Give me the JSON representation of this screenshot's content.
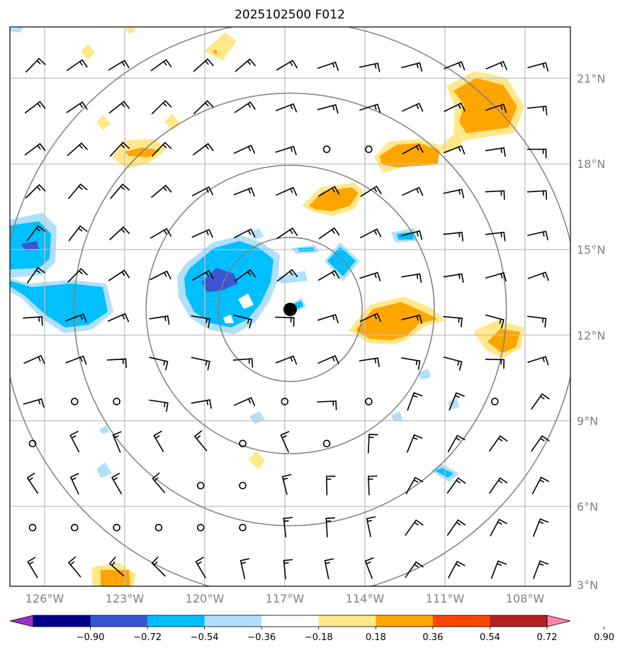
{
  "title": "2025102500 F012",
  "map": {
    "lon_range": [
      -127.3,
      -106.3
    ],
    "lat_range": [
      3.2,
      22.8
    ],
    "lon_labels": [
      "126°W",
      "123°W",
      "120°W",
      "117°W",
      "114°W",
      "111°W",
      "108°W"
    ],
    "lon_values": [
      -126,
      -123,
      -120,
      -117,
      -114,
      -111,
      -108
    ],
    "lat_labels": [
      "3°N",
      "6°N",
      "9°N",
      "12°N",
      "15°N",
      "18°N",
      "21°N"
    ],
    "lat_values": [
      3,
      6,
      9,
      12,
      15,
      18,
      21
    ],
    "storm_center": {
      "lon": -116.8,
      "lat": 12.9
    },
    "range_ring_radii_deg": [
      2.7,
      5.4,
      8.1,
      10.8
    ]
  },
  "colorbar": {
    "ticks": [
      "−0.90",
      "−0.72",
      "−0.54",
      "−0.36",
      "−0.18",
      "0.18",
      "0.36",
      "0.54",
      "0.72",
      "0.90"
    ],
    "colors": [
      "#9b30d0",
      "#00008b",
      "#3a56d4",
      "#00bfff",
      "#b0e0fa",
      "#ffffff",
      "#ffe88a",
      "#ffa500",
      "#ff4500",
      "#b22222",
      "#ff85b0"
    ]
  },
  "palette": {
    "positive": [
      "#ffe88a",
      "#ffa500"
    ],
    "negative": [
      "#b0e0fa",
      "#00bfff",
      "#3a56d4"
    ]
  }
}
